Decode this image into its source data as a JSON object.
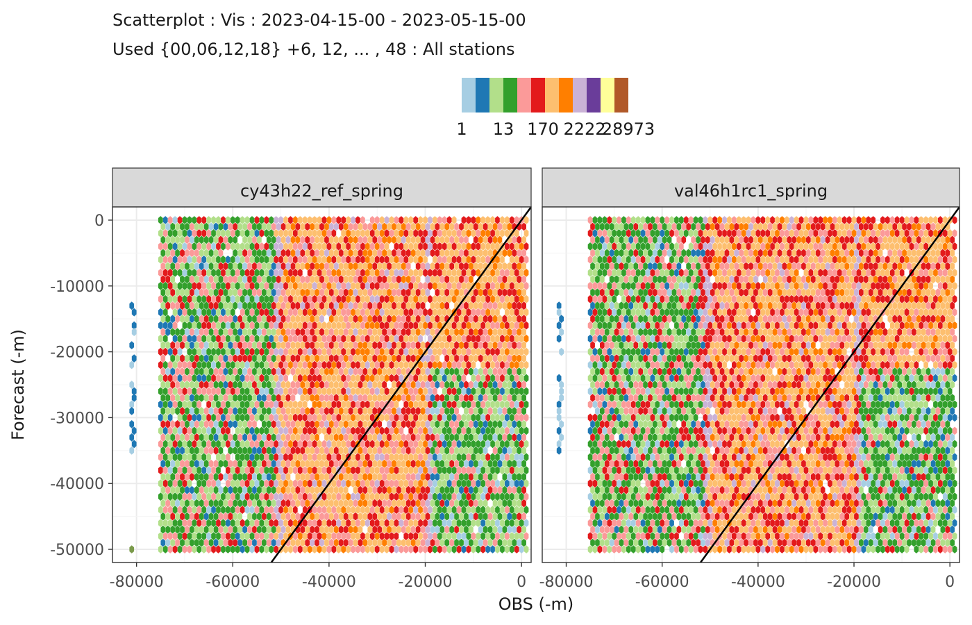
{
  "title": {
    "line1": "Scatterplot : Vis : 2023-04-15-00 - 2023-05-15-00",
    "line2": "Used {00,06,12,18} +6, 12, ... , 48 : All stations"
  },
  "legend": {
    "labels": [
      "1",
      "13",
      "170",
      "2222",
      "28973"
    ],
    "palette": [
      "#a6cee3",
      "#1f78b4",
      "#b2df8a",
      "#33a02c",
      "#fb9a99",
      "#e31a1c",
      "#fdbf6f",
      "#ff7f00",
      "#cab2d6",
      "#6a3d9a",
      "#ffff99",
      "#b15928"
    ]
  },
  "chart_data": {
    "type": "hexbin",
    "xlabel": "OBS (-m)",
    "ylabel": "Forecast (-m)",
    "xlim": [
      -85000,
      2000
    ],
    "ylim": [
      -52000,
      2000
    ],
    "x_ticks": [
      "-80000",
      "-60000",
      "-40000",
      "-20000",
      "0"
    ],
    "x_tick_values": [
      -80000,
      -60000,
      -40000,
      -20000,
      0
    ],
    "y_ticks": [
      "0",
      "-10000",
      "-20000",
      "-30000",
      "-40000",
      "-50000"
    ],
    "y_tick_values": [
      0,
      -10000,
      -20000,
      -30000,
      -40000,
      -50000
    ],
    "grid": true,
    "reference_line": "y = x",
    "count_scale": "log",
    "panels": [
      {
        "name": "cy43h22_ref_spring",
        "bands": [
          {
            "x": [
              -75000,
              -51000
            ],
            "level": "low-mid"
          },
          {
            "x": [
              -51000,
              -49500
            ],
            "level": "high"
          },
          {
            "x": [
              -49500,
              -19500
            ],
            "level": "high"
          },
          {
            "x": [
              -19500,
              -18500
            ],
            "level": "high"
          },
          {
            "x": [
              -18500,
              1000
            ],
            "level": "mixed"
          }
        ],
        "isolated_column_x": -81000
      },
      {
        "name": "val46h1rc1_spring",
        "bands": [
          {
            "x": [
              -75000,
              -51000
            ],
            "level": "low-mid"
          },
          {
            "x": [
              -51000,
              -49500
            ],
            "level": "high"
          },
          {
            "x": [
              -49500,
              -19500
            ],
            "level": "high"
          },
          {
            "x": [
              -19500,
              -18500
            ],
            "level": "high"
          },
          {
            "x": [
              -18500,
              1000
            ],
            "level": "mixed"
          }
        ],
        "isolated_column_x": -81500
      }
    ]
  }
}
